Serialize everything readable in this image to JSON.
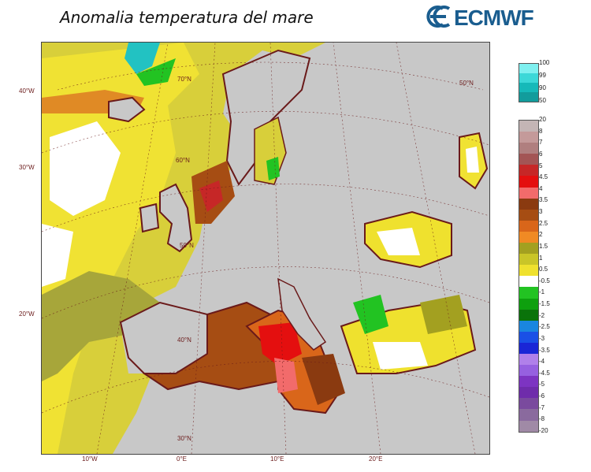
{
  "title": "Anomalia temperatura del mare",
  "logo": {
    "text": "ECMWF",
    "color": "#1a5d8f"
  },
  "map": {
    "land_color": "#c8c8c8",
    "coast_color": "#6a1a1a",
    "lon_labels": [
      "10°W",
      "0°E",
      "10°E",
      "20°E"
    ],
    "lat_labels_left": [
      "40°W",
      "30°W",
      "20°W"
    ],
    "lat_labels_inner": [
      "70°N",
      "60°N",
      "50°N",
      "40°N",
      "30°N",
      "50°N"
    ]
  },
  "colorbar_ice": {
    "labels": [
      "100",
      "99",
      "90",
      "50"
    ],
    "colors": [
      "#7ff0f0",
      "#3cd8d8",
      "#16b9b9",
      "#129c9c"
    ]
  },
  "colorbar_anomaly": {
    "labels": [
      "20",
      "8",
      "7",
      "6",
      "5",
      "4.5",
      "4",
      "3.5",
      "3",
      "2.5",
      "2",
      "1.5",
      "1",
      "0.5",
      "-0.5",
      "-1",
      "-1.5",
      "-2",
      "-2.5",
      "-3",
      "-3.5",
      "-4",
      "-4.5",
      "-5",
      "-6",
      "-7",
      "-8",
      "-20"
    ],
    "colors": [
      "#c4b5b5",
      "#c49a9a",
      "#b07f7f",
      "#a35555",
      "#c62727",
      "#e40f0f",
      "#f26b6b",
      "#8a3a10",
      "#a64d13",
      "#d9661a",
      "#f08a24",
      "#a3a020",
      "#c9c528",
      "#efe12e",
      "#ffffff",
      "#22c322",
      "#0ea00e",
      "#0a730a",
      "#1a86e0",
      "#1a50e6",
      "#1a26d6",
      "#b080ea",
      "#9660e0",
      "#7d34c2",
      "#6f2cab",
      "#7a4a9e",
      "#8a6a9e",
      "#a08aa6"
    ]
  }
}
